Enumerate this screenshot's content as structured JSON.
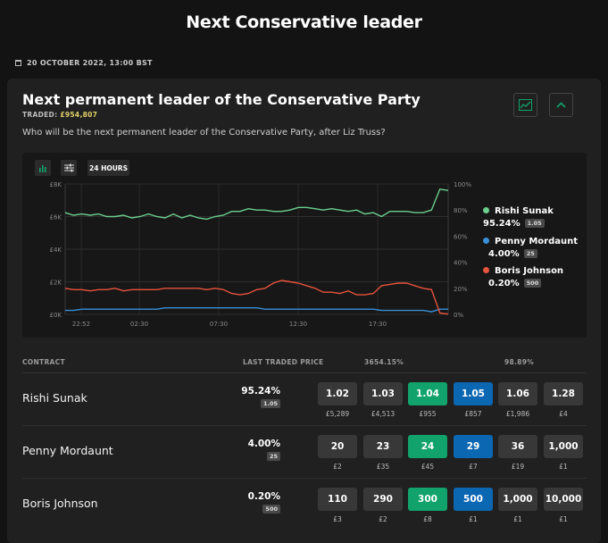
{
  "page_title": "Next Conservative leader",
  "date": "20 OCTOBER 2022, 13:00 BST",
  "market": {
    "title": "Next permanent leader of the Conservative Party",
    "traded_label": "TRADED:",
    "traded_amount": "£954,807",
    "question": "Who will be the next permanent leader of the Conservative Party, after Liz Truss?"
  },
  "toolbar": {
    "period_label": "24 HOURS"
  },
  "chart_data": {
    "type": "line",
    "x_ticks": [
      "22:52",
      "02:30",
      "07:30",
      "12:30",
      "17:30"
    ],
    "y_left_ticks": [
      "£8K",
      "£6K",
      "£4K",
      "£2K",
      "£0K"
    ],
    "y_right_ticks": [
      "100%",
      "80%",
      "60%",
      "40%",
      "20%",
      "0%"
    ],
    "series": [
      {
        "name": "Rishi Sunak",
        "color": "#6ccf8f",
        "values": [
          78,
          76,
          77,
          76,
          77,
          75,
          75,
          76,
          74,
          75,
          77,
          75,
          74,
          77,
          74,
          76,
          74,
          73,
          75,
          76,
          79,
          79,
          81,
          80,
          80,
          79,
          79,
          80,
          82,
          82,
          81,
          80,
          81,
          80,
          79,
          80,
          77,
          78,
          75,
          79,
          79,
          79,
          78,
          78,
          80,
          96,
          95
        ]
      },
      {
        "name": "Penny Mordaunt",
        "color": "#3a8fd6",
        "values": [
          3,
          3,
          4,
          4,
          4,
          4,
          4,
          4,
          4,
          4,
          4,
          4,
          5,
          5,
          5,
          5,
          5,
          5,
          5,
          5,
          5,
          5,
          5,
          5,
          4,
          4,
          4,
          4,
          4,
          4,
          4,
          4,
          4,
          4,
          4,
          4,
          4,
          4,
          3,
          3,
          3,
          3,
          3,
          3,
          2,
          4,
          4
        ]
      },
      {
        "name": "Boris Johnson",
        "color": "#e8533c",
        "values": [
          20,
          19,
          19,
          18,
          19,
          19,
          20,
          18,
          19,
          19,
          19,
          19,
          20,
          20,
          20,
          20,
          20,
          19,
          20,
          19,
          16,
          15,
          16,
          19,
          20,
          24,
          26,
          25,
          24,
          22,
          20,
          17,
          17,
          16,
          18,
          15,
          15,
          16,
          22,
          23,
          24,
          24,
          22,
          20,
          19,
          1,
          0.2
        ]
      }
    ],
    "grid": true,
    "legend": "right"
  },
  "legend": [
    {
      "name": "Rishi Sunak",
      "pct": "95.24%",
      "badge": "1.05",
      "color": "#6ccf8f"
    },
    {
      "name": "Penny Mordaunt",
      "pct": "4.00%",
      "badge": "25",
      "color": "#3a8fd6"
    },
    {
      "name": "Boris Johnson",
      "pct": "0.20%",
      "badge": "500",
      "color": "#e8533c"
    }
  ],
  "table": {
    "col_contract": "CONTRACT",
    "col_ltp": "LAST TRADED PRICE",
    "col_back_book": "3654.15%",
    "col_lay_book": "98.89%",
    "rows": [
      {
        "name": "Rishi Sunak",
        "ltp": "95.24%",
        "ltp_badge": "1.05",
        "cells": [
          [
            "1.02",
            "£5,289"
          ],
          [
            "1.03",
            "£4,513"
          ],
          [
            "1.04",
            "£955"
          ],
          [
            "1.05",
            "£857"
          ],
          [
            "1.06",
            "£1,986"
          ],
          [
            "1.28",
            "£4"
          ]
        ]
      },
      {
        "name": "Penny Mordaunt",
        "ltp": "4.00%",
        "ltp_badge": "25",
        "cells": [
          [
            "20",
            "£2"
          ],
          [
            "23",
            "£35"
          ],
          [
            "24",
            "£45"
          ],
          [
            "29",
            "£7"
          ],
          [
            "36",
            "£19"
          ],
          [
            "1,000",
            "£1"
          ]
        ]
      },
      {
        "name": "Boris Johnson",
        "ltp": "0.20%",
        "ltp_badge": "500",
        "cells": [
          [
            "110",
            "£3"
          ],
          [
            "290",
            "£2"
          ],
          [
            "300",
            "£8"
          ],
          [
            "500",
            "£1"
          ],
          [
            "1,000",
            "£1"
          ],
          [
            "10,000",
            "£1"
          ]
        ]
      }
    ]
  }
}
